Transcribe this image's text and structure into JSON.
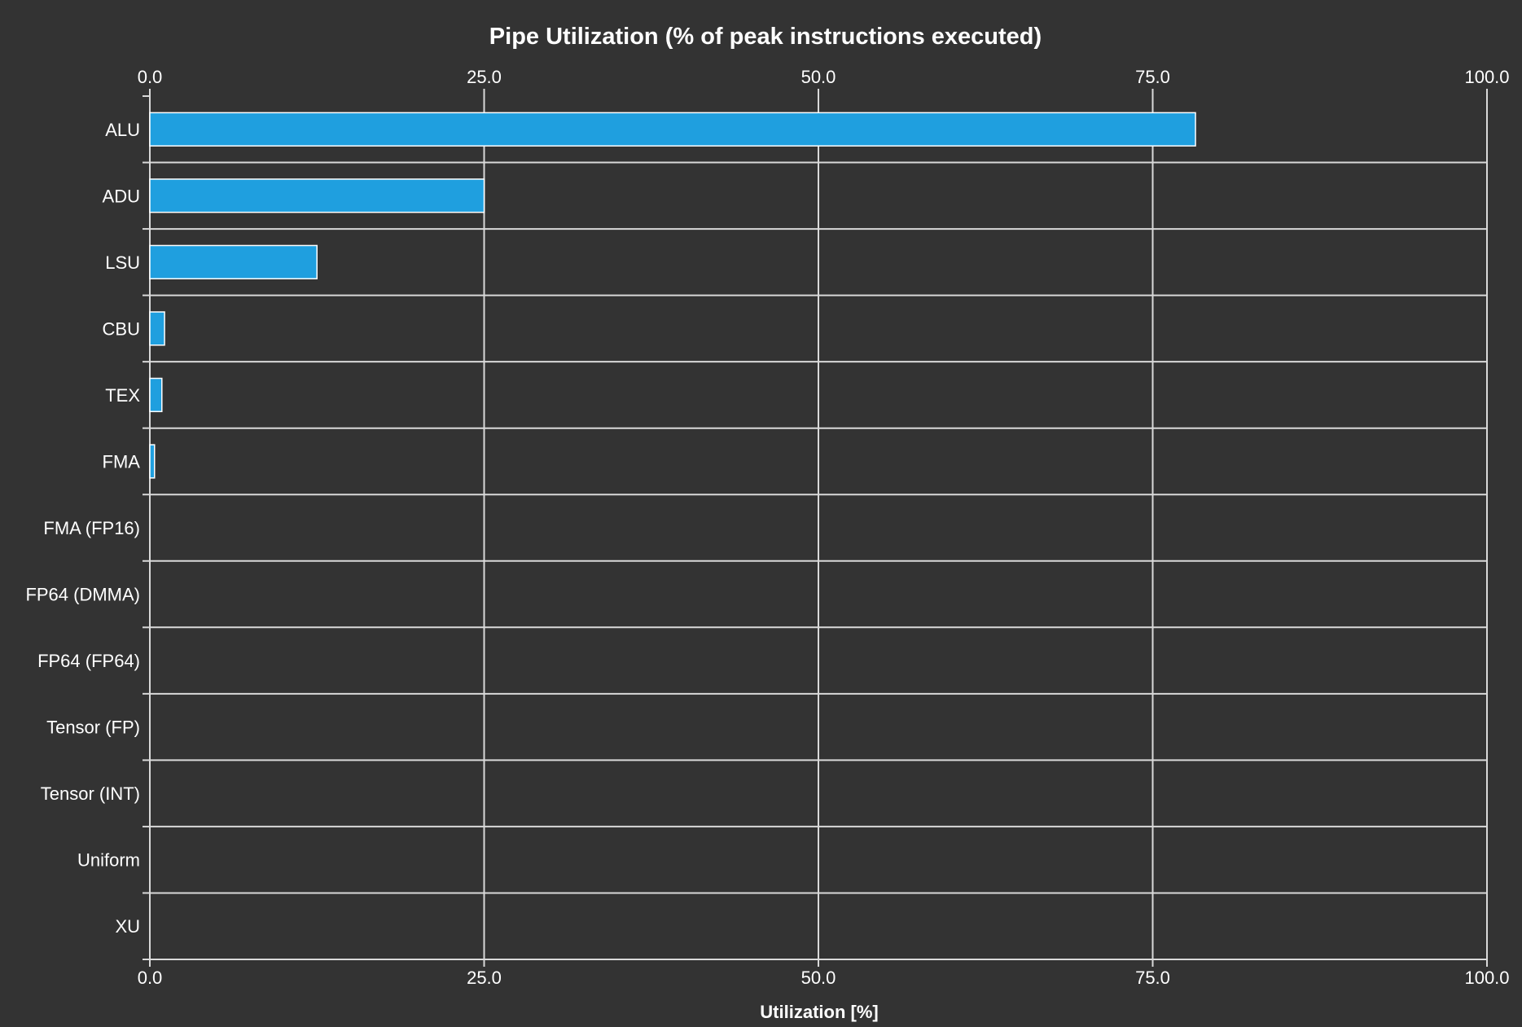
{
  "chart_data": {
    "type": "bar",
    "orientation": "horizontal",
    "title": "Pipe Utilization (% of peak instructions executed)",
    "xlabel": "Utilization [%]",
    "ylabel": "",
    "xlim": [
      0,
      100
    ],
    "x_ticks": [
      "0.0",
      "25.0",
      "50.0",
      "75.0",
      "100.0"
    ],
    "x_tick_values": [
      0,
      25,
      50,
      75,
      100
    ],
    "x_ticks_top": true,
    "x_ticks_bottom": true,
    "grid": true,
    "categories": [
      "ALU",
      "ADU",
      "LSU",
      "CBU",
      "TEX",
      "FMA",
      "FMA (FP16)",
      "FP64 (DMMA)",
      "FP64 (FP64)",
      "Tensor (FP)",
      "Tensor (INT)",
      "Uniform",
      "XU"
    ],
    "values": [
      78.2,
      25.0,
      12.5,
      1.1,
      0.9,
      0.35,
      0,
      0,
      0,
      0,
      0,
      0,
      0
    ]
  },
  "colors": {
    "background": "#333333",
    "bar_fill": "#1f9fdf",
    "bar_stroke": "#ffffff",
    "grid": "#d9d9d9",
    "text": "#ffffff"
  }
}
